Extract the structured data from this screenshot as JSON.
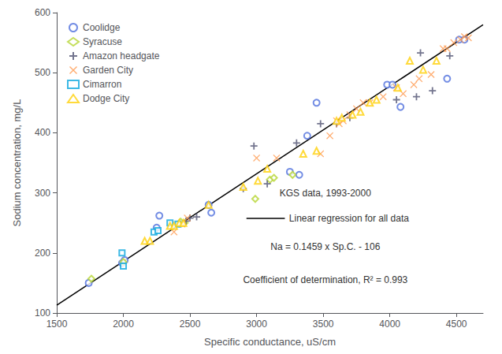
{
  "chart_data": {
    "type": "scatter",
    "xlabel": "Specific conductance, uS/cm",
    "ylabel": "Sodium concentration, mg/L",
    "xlim": [
      1500,
      4700
    ],
    "ylim": [
      100,
      600
    ],
    "xticks": [
      1500,
      2000,
      2500,
      3000,
      3500,
      4000,
      4500
    ],
    "yticks": [
      100,
      200,
      300,
      400,
      500,
      600
    ],
    "grid": false,
    "legend": "upper left",
    "series": [
      {
        "type": "line",
        "color": "#000000",
        "x": [
          1500,
          4700
        ],
        "values": [
          112.85,
          579.73
        ]
      },
      {
        "name": "Coolidge",
        "marker": "circle",
        "x": [
          1740,
          1990,
          2010,
          2250,
          2270,
          2640,
          2660,
          3250,
          3320,
          3380,
          3450,
          3980,
          4020,
          4080,
          4430,
          4520,
          4560
        ],
        "values": [
          150,
          183,
          188,
          242,
          262,
          280,
          267,
          335,
          330,
          395,
          450,
          480,
          480,
          443,
          490,
          555,
          555
        ]
      },
      {
        "name": "Syracuse",
        "marker": "diamond",
        "x": [
          1760,
          2000,
          2430,
          2460,
          2990,
          3100,
          3130,
          3270
        ],
        "values": [
          157,
          185,
          252,
          250,
          290,
          322,
          325,
          330
        ]
      },
      {
        "name": "Amazon headgate",
        "marker": "plus",
        "x": [
          2470,
          2500,
          2550,
          2900,
          2980,
          3080,
          3300,
          3480,
          3600,
          3700,
          4050,
          4200,
          4230,
          4320,
          4450
        ],
        "values": [
          253,
          258,
          260,
          307,
          378,
          315,
          383,
          415,
          415,
          425,
          455,
          460,
          533,
          470,
          528
        ]
      },
      {
        "name": "Garden City",
        "marker": "x",
        "x": [
          2380,
          2440,
          2480,
          3000,
          3150,
          3480,
          3550,
          3600,
          3620,
          3650,
          3700,
          3750,
          3800,
          3850,
          3950,
          4050,
          4100,
          4180,
          4220,
          4310,
          4400,
          4430,
          4480,
          4530,
          4560,
          4590
        ],
        "values": [
          235,
          248,
          258,
          358,
          358,
          365,
          395,
          420,
          415,
          420,
          430,
          440,
          450,
          450,
          460,
          475,
          465,
          480,
          490,
          497,
          540,
          540,
          550,
          555,
          560,
          558
        ]
      },
      {
        "name": "Cimarron",
        "marker": "square",
        "x": [
          1990,
          2000,
          2230,
          2260,
          2350,
          2410
        ],
        "values": [
          200,
          178,
          235,
          237,
          250,
          248
        ]
      },
      {
        "name": "Dodge City",
        "marker": "triangle",
        "x": [
          2160,
          2200,
          2350,
          2380,
          2420,
          2450,
          2640,
          2900,
          3010,
          3080,
          3350,
          3450,
          3600,
          3640,
          3720,
          3780,
          3850,
          3900,
          4060,
          4150,
          4250,
          4350
        ],
        "values": [
          220,
          220,
          245,
          245,
          250,
          250,
          280,
          310,
          320,
          340,
          365,
          370,
          420,
          425,
          430,
          435,
          450,
          455,
          475,
          520,
          505,
          520
        ]
      }
    ],
    "annotations": [
      "KGS data, 1993-2000",
      "Linear regression for all data",
      "Na = 0.1459 x Sp.C. - 106",
      "Coefficient of determination, R² = 0.993"
    ]
  }
}
